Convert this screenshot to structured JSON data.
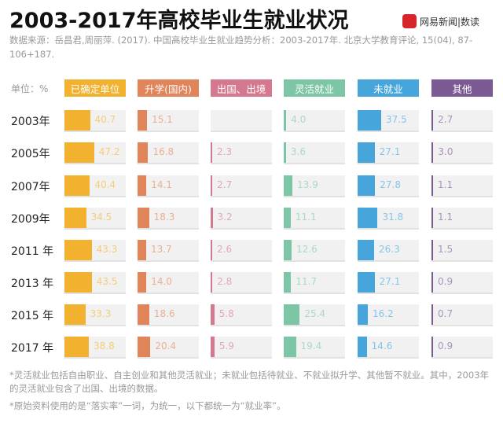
{
  "title": "2003-2017年高校毕业生就业状况",
  "brand": {
    "logo_text": "网易",
    "name": "网易新闻|数读"
  },
  "source": "数据来源：岳昌君,周丽萍. (2017). 中国高校毕业生就业趋势分析：2003-2017年. 北京大学教育评论, 15(04), 87-106+187.",
  "chart_data": {
    "type": "table",
    "unit_label": "单位：%",
    "categories": [
      "2003年",
      "2005年",
      "2007年",
      "2009年",
      "2011 年",
      "2013 年",
      "2015 年",
      "2017 年"
    ],
    "series": [
      {
        "name": "已确定单位",
        "color": "#f2b12f",
        "values": [
          40.7,
          47.2,
          40.4,
          34.5,
          43.3,
          43.5,
          33.3,
          38.8
        ]
      },
      {
        "name": "升学(国内)",
        "color": "#e0845a",
        "values": [
          15.1,
          16.8,
          14.1,
          18.3,
          13.7,
          14.0,
          18.6,
          20.4
        ]
      },
      {
        "name": "出国、出境",
        "color": "#d47890",
        "values": [
          null,
          2.3,
          2.7,
          3.2,
          2.6,
          2.8,
          5.8,
          5.9
        ]
      },
      {
        "name": "灵活就业",
        "color": "#7cc6a6",
        "values": [
          4.0,
          3.6,
          13.9,
          11.1,
          12.6,
          11.7,
          25.4,
          19.4
        ]
      },
      {
        "name": "未就业",
        "color": "#46a6dc",
        "values": [
          37.5,
          27.1,
          27.8,
          31.8,
          26.3,
          27.1,
          16.2,
          14.6
        ]
      },
      {
        "name": "其他",
        "color": "#7b5a93",
        "values": [
          2.7,
          3.0,
          1.1,
          1.1,
          1.5,
          0.9,
          0.7,
          0.9
        ]
      }
    ]
  },
  "notes": [
    "*灵活就业包括自由职业、自主创业和其他灵活就业；未就业包括待就业、不就业拟升学、其他暂不就业。其中，2003年的灵活就业包含了出国、出境的数据。",
    "*原始资料使用的是“落实率”一词，为统一，以下都统一为“就业率”。"
  ]
}
